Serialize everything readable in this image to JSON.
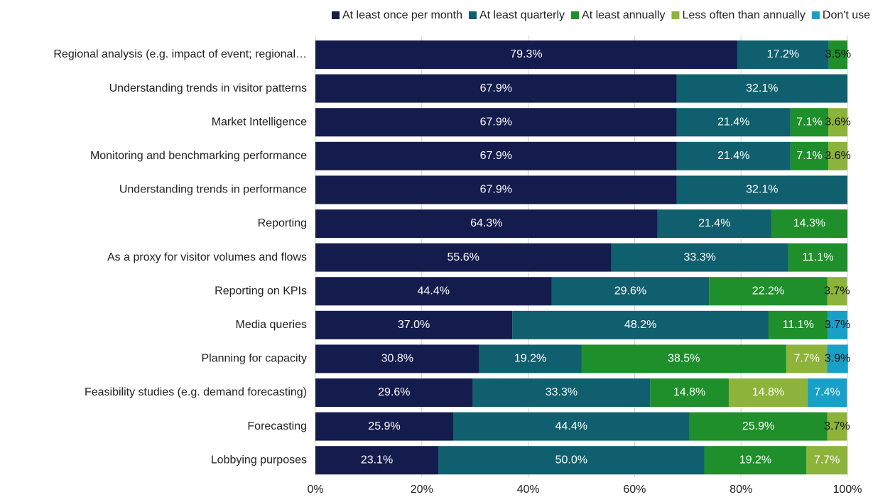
{
  "chart_data": {
    "type": "stacked-bar-horizontal",
    "categories": [
      "Regional analysis (e.g. impact of event; regional…",
      "Understanding trends in visitor patterns",
      "Market Intelligence",
      "Monitoring and benchmarking performance",
      "Understanding trends in performance",
      "Reporting",
      "As a proxy for visitor volumes and flows",
      "Reporting on KPIs",
      "Media queries",
      "Planning for capacity",
      "Feasibility studies (e.g. demand forecasting)",
      "Forecasting",
      "Lobbying purposes"
    ],
    "series": [
      {
        "name": "At least once per month",
        "color": "#141b4d",
        "values": [
          79.3,
          67.9,
          67.9,
          67.9,
          67.9,
          64.3,
          55.6,
          44.4,
          37.0,
          30.8,
          29.6,
          25.9,
          23.1
        ],
        "value_labels": [
          "79.3%",
          "67.9%",
          "67.9%",
          "67.9%",
          "67.9%",
          "64.3%",
          "55.6%",
          "44.4%",
          "37.0%",
          "30.8%",
          "29.6%",
          "25.9%",
          "23.1%"
        ]
      },
      {
        "name": "At least quarterly",
        "color": "#0f5f6e",
        "values": [
          17.2,
          32.1,
          21.4,
          21.4,
          32.1,
          21.4,
          33.3,
          29.6,
          48.2,
          19.2,
          33.3,
          44.4,
          50.0
        ],
        "value_labels": [
          "17.2%",
          "32.1%",
          "21.4%",
          "21.4%",
          "32.1%",
          "21.4%",
          "33.3%",
          "29.6%",
          "48.2%",
          "19.2%",
          "33.3%",
          "44.4%",
          "50.0%"
        ]
      },
      {
        "name": "At least annually",
        "color": "#1e8f2a",
        "values": [
          3.5,
          null,
          7.1,
          7.1,
          null,
          14.3,
          11.1,
          22.2,
          11.1,
          38.5,
          14.8,
          25.9,
          19.2
        ],
        "value_labels": [
          "3.5%",
          null,
          "7.1%",
          "7.1%",
          null,
          "14.3%",
          "11.1%",
          "22.2%",
          "11.1%",
          "38.5%",
          "14.8%",
          "25.9%",
          "19.2%"
        ]
      },
      {
        "name": "Less often than annually",
        "color": "#8db33a",
        "values": [
          null,
          null,
          3.6,
          3.6,
          null,
          null,
          null,
          3.7,
          null,
          7.7,
          14.8,
          3.7,
          7.7
        ],
        "value_labels": [
          null,
          null,
          "3.6%",
          "3.6%",
          null,
          null,
          null,
          "3.7%",
          null,
          "7.7%",
          "14.8%",
          "3.7%",
          "7.7%"
        ]
      },
      {
        "name": "Don't use",
        "color": "#18a0c8",
        "values": [
          null,
          null,
          null,
          null,
          null,
          null,
          null,
          null,
          3.7,
          3.9,
          7.4,
          null,
          null
        ],
        "value_labels": [
          null,
          null,
          null,
          null,
          null,
          null,
          null,
          null,
          "3.7%",
          "3.9%",
          "7.4%",
          null,
          null
        ]
      }
    ],
    "xlim": [
      0,
      100
    ],
    "xticks": [
      {
        "value": 0,
        "label": "0%"
      },
      {
        "value": 20,
        "label": "20%"
      },
      {
        "value": 40,
        "label": "40%"
      },
      {
        "value": 60,
        "label": "60%"
      },
      {
        "value": 80,
        "label": "80%"
      },
      {
        "value": 100,
        "label": "100%"
      }
    ],
    "grid": true,
    "legend": "top-right"
  }
}
